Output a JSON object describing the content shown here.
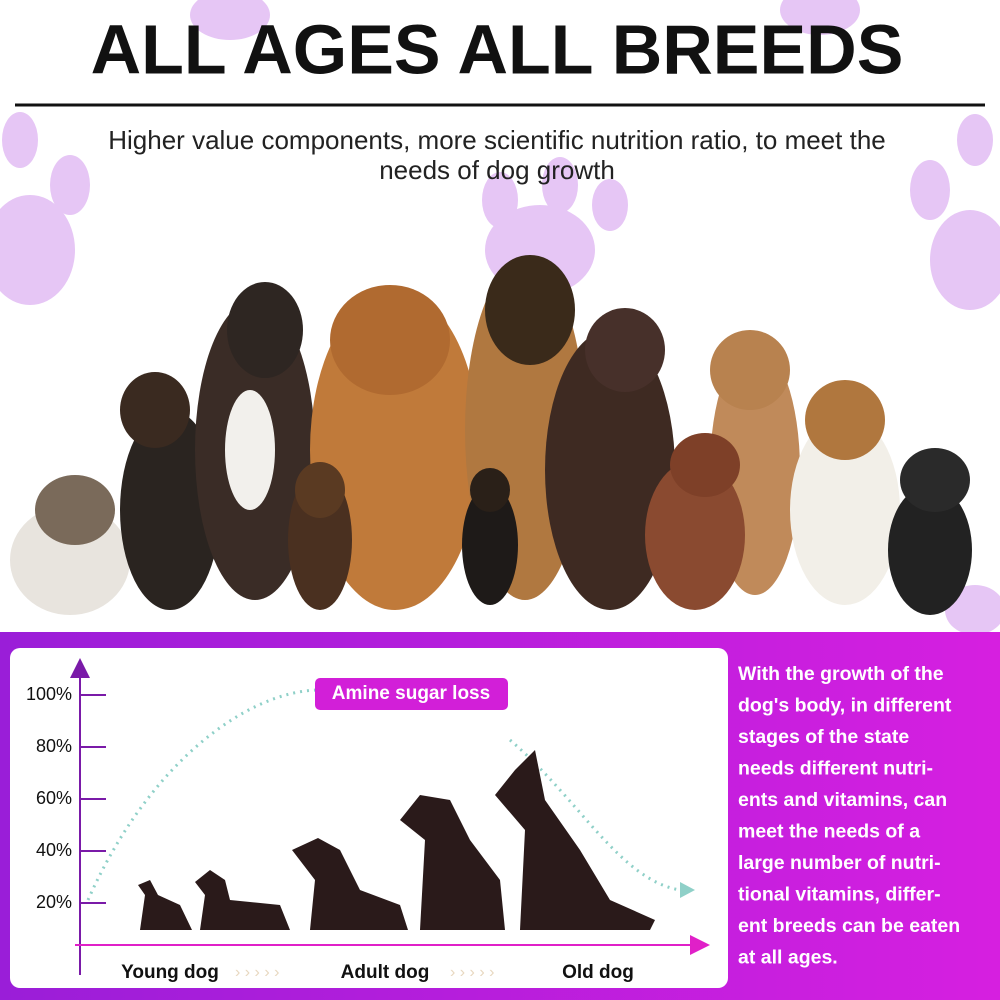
{
  "header": {
    "title": "ALL AGES ALL BREEDS",
    "subtitle": [
      "Higher value components, more scientific nutrition ratio, to meet the",
      "needs of dog growth"
    ]
  },
  "chart": {
    "yticks": [
      {
        "value": 100,
        "label": "100%"
      },
      {
        "value": 80,
        "label": "80%"
      },
      {
        "value": 60,
        "label": "60%"
      },
      {
        "value": 40,
        "label": "40%"
      },
      {
        "value": 20,
        "label": "20%"
      }
    ],
    "annotation": "Amine sugar loss",
    "stages": [
      "Young dog",
      "Adult dog",
      "Old dog"
    ]
  },
  "side_text": [
    "With the growth of the",
    "dog's body, in different",
    "stages of the state",
    "needs different nutri-",
    "ents and vitamins, can",
    "meet the needs of a",
    "large number of nutri-",
    "tional vitamins, differ-",
    "ent breeds can be eaten",
    "at all ages."
  ]
}
